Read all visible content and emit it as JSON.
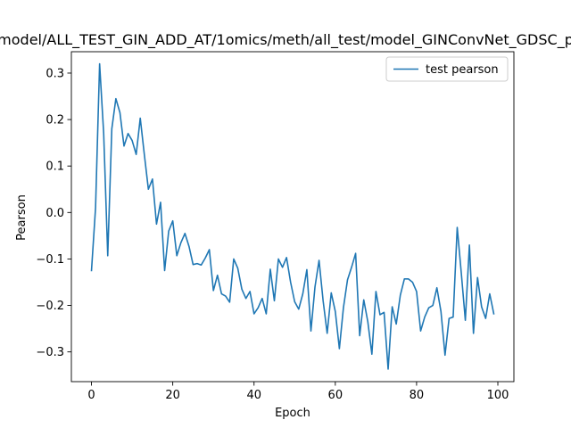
{
  "chart_data": {
    "type": "line",
    "title": "model/ALL_TEST_GIN_ADD_AT/1omics/meth/all_test/model_GINConvNet_GDSC_p",
    "xlabel": "Epoch",
    "ylabel": "Pearson",
    "xlim": [
      -4.95,
      103.95
    ],
    "ylim": [
      -0.364,
      0.346
    ],
    "xticks": [
      0,
      20,
      40,
      60,
      80,
      100
    ],
    "yticks": [
      -0.3,
      -0.2,
      -0.1,
      0.0,
      0.1,
      0.2,
      0.3
    ],
    "xtick_labels": [
      "0",
      "20",
      "40",
      "60",
      "80",
      "100"
    ],
    "ytick_labels": [
      "−0.3",
      "−0.2",
      "−0.1",
      "0.0",
      "0.1",
      "0.2",
      "0.3"
    ],
    "grid": false,
    "legend": {
      "position": "top-right",
      "entries": [
        "test pearson"
      ]
    },
    "series": [
      {
        "name": "test pearson",
        "color": "#1f77b4",
        "x": [
          0,
          1,
          2,
          3,
          4,
          5,
          6,
          7,
          8,
          9,
          10,
          11,
          12,
          13,
          14,
          15,
          16,
          17,
          18,
          19,
          20,
          21,
          22,
          23,
          24,
          25,
          26,
          27,
          28,
          29,
          30,
          31,
          32,
          33,
          34,
          35,
          36,
          37,
          38,
          39,
          40,
          41,
          42,
          43,
          44,
          45,
          46,
          47,
          48,
          49,
          50,
          51,
          52,
          53,
          54,
          55,
          56,
          57,
          58,
          59,
          60,
          61,
          62,
          63,
          64,
          65,
          66,
          67,
          68,
          69,
          70,
          71,
          72,
          73,
          74,
          75,
          76,
          77,
          78,
          79,
          80,
          81,
          82,
          83,
          84,
          85,
          86,
          87,
          88,
          89,
          90,
          91,
          92,
          93,
          94,
          95,
          96,
          97,
          98,
          99
        ],
        "values": [
          -0.125,
          0.01,
          0.32,
          0.17,
          -0.093,
          0.18,
          0.245,
          0.215,
          0.143,
          0.17,
          0.155,
          0.125,
          0.203,
          0.125,
          0.05,
          0.072,
          -0.025,
          0.022,
          -0.125,
          -0.04,
          -0.018,
          -0.093,
          -0.065,
          -0.045,
          -0.073,
          -0.112,
          -0.11,
          -0.113,
          -0.098,
          -0.08,
          -0.168,
          -0.135,
          -0.175,
          -0.18,
          -0.193,
          -0.1,
          -0.12,
          -0.165,
          -0.185,
          -0.17,
          -0.218,
          -0.205,
          -0.185,
          -0.218,
          -0.122,
          -0.19,
          -0.1,
          -0.118,
          -0.097,
          -0.15,
          -0.192,
          -0.208,
          -0.175,
          -0.123,
          -0.255,
          -0.16,
          -0.103,
          -0.19,
          -0.26,
          -0.173,
          -0.213,
          -0.293,
          -0.205,
          -0.145,
          -0.118,
          -0.088,
          -0.265,
          -0.188,
          -0.235,
          -0.305,
          -0.17,
          -0.22,
          -0.215,
          -0.337,
          -0.203,
          -0.24,
          -0.178,
          -0.143,
          -0.143,
          -0.15,
          -0.17,
          -0.255,
          -0.225,
          -0.205,
          -0.2,
          -0.162,
          -0.213,
          -0.307,
          -0.228,
          -0.225,
          -0.032,
          -0.13,
          -0.232,
          -0.07,
          -0.26,
          -0.14,
          -0.203,
          -0.228,
          -0.175,
          -0.218
        ]
      }
    ]
  }
}
